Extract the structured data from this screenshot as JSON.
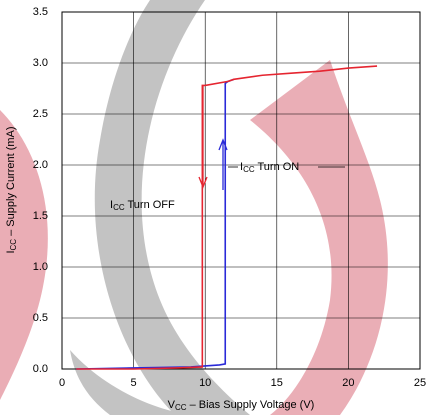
{
  "chart_data": {
    "type": "line",
    "x_label": [
      "V",
      "CC",
      " – Bias Supply Voltage (V)"
    ],
    "y_label": [
      "I",
      "CC",
      " – Supply Current (mA)"
    ],
    "annotations": [
      [
        "I",
        "CC",
        " Turn OFF"
      ],
      [
        "I",
        "CC",
        " Turn ON"
      ]
    ],
    "xlim": [
      0,
      25
    ],
    "xticks": [
      0,
      5,
      10,
      15,
      20,
      25
    ],
    "ylim": [
      0,
      3.5
    ],
    "yticks": [
      {
        "value": 0,
        "label": "0.0"
      },
      0.5,
      {
        "value": 1,
        "label": "1.0"
      },
      1.5,
      {
        "value": 2,
        "label": "2.0"
      },
      2.5,
      {
        "value": 3,
        "label": "3.0"
      },
      3.5
    ],
    "grid": true,
    "series": [
      {
        "color": "#2a2ad8",
        "x": [
          1,
          5,
          9,
          10,
          11,
          11.4,
          11.4,
          11.6,
          12
        ],
        "values": [
          0,
          0.01,
          0.02,
          0.03,
          0.04,
          0.05,
          2.8,
          2.82,
          2.84
        ]
      },
      {
        "color": "#e52530",
        "x": [
          22,
          20,
          18,
          16,
          14,
          12,
          11.6,
          10,
          9.8,
          9.8,
          8,
          5,
          1
        ],
        "values": [
          2.97,
          2.95,
          2.92,
          2.9,
          2.88,
          2.84,
          2.82,
          2.78,
          2.78,
          0.02,
          0.01,
          0,
          0
        ]
      }
    ]
  }
}
